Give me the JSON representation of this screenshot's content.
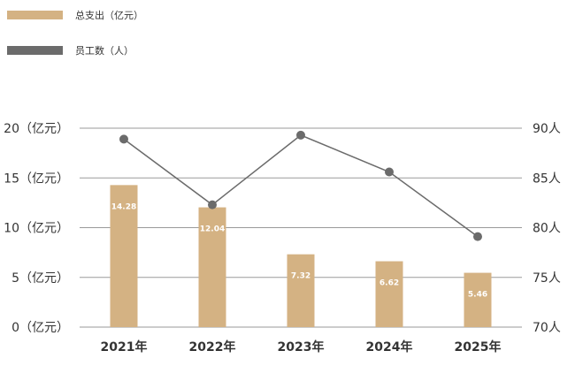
{
  "chart_data": {
    "type": "bar",
    "categories": [
      "2021年",
      "2022年",
      "2023年",
      "2024年",
      "2025年"
    ],
    "series": [
      {
        "name": "总支出（亿元）",
        "kind": "bar",
        "axis": "left",
        "values": [
          14.28,
          12.04,
          7.32,
          6.62,
          5.46
        ],
        "labels": [
          "14.28",
          "12.04",
          "7.32",
          "6.62",
          "5.46"
        ],
        "color": "#d4b283"
      },
      {
        "name": "员工数（人）",
        "kind": "line",
        "axis": "right",
        "values": [
          88.9,
          82.3,
          89.3,
          85.6,
          79.1
        ],
        "color": "#6b6b6b"
      }
    ],
    "left_axis": {
      "ylim": [
        0,
        20
      ],
      "ticks": [
        0,
        5,
        10,
        15,
        20
      ],
      "tick_labels": [
        "0（亿元）",
        "5（亿元）",
        "10（亿元）",
        "15（亿元）",
        "20（亿元）"
      ]
    },
    "right_axis": {
      "ylim": [
        70,
        90
      ],
      "ticks": [
        70,
        75,
        80,
        85,
        90
      ],
      "tick_labels": [
        "70人",
        "75人",
        "80人",
        "85人",
        "90人"
      ]
    },
    "grid": true,
    "legend_position": "top-left",
    "title": "",
    "xlabel": ""
  }
}
